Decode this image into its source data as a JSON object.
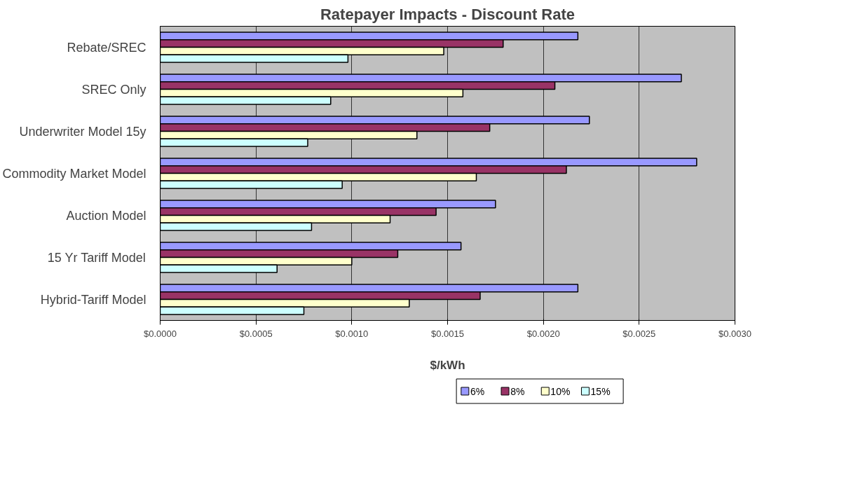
{
  "chart_data": {
    "type": "bar",
    "orientation": "horizontal",
    "title": "Ratepayer Impacts - Discount Rate",
    "xlabel": "$/kWh",
    "categories": [
      "Rebate/SREC",
      "SREC Only",
      "Underwriter Model 15y",
      "Commodity Market Model",
      "Auction Model",
      "15 Yr Tariff Model",
      "Hybrid-Tariff Model"
    ],
    "series": [
      {
        "name": "6%",
        "color": "#9999ff",
        "values": [
          0.00218,
          0.00272,
          0.00224,
          0.0028,
          0.00175,
          0.00157,
          0.00218
        ]
      },
      {
        "name": "8%",
        "color": "#993366",
        "values": [
          0.00179,
          0.00206,
          0.00172,
          0.00212,
          0.00144,
          0.00124,
          0.00167
        ]
      },
      {
        "name": "10%",
        "color": "#ffffcc",
        "values": [
          0.00148,
          0.00158,
          0.00134,
          0.00165,
          0.0012,
          0.001,
          0.0013
        ]
      },
      {
        "name": "15%",
        "color": "#ccffff",
        "values": [
          0.00098,
          0.00089,
          0.00077,
          0.00095,
          0.00079,
          0.00061,
          0.00075
        ]
      }
    ],
    "xlim": [
      0,
      0.003
    ],
    "xticks": [
      {
        "value": 0,
        "label": "$0.0000"
      },
      {
        "value": 0.0005,
        "label": "$0.0005"
      },
      {
        "value": 0.001,
        "label": "$0.0010"
      },
      {
        "value": 0.0015,
        "label": "$0.0015"
      },
      {
        "value": 0.002,
        "label": "$0.0020"
      },
      {
        "value": 0.0025,
        "label": "$0.0025"
      },
      {
        "value": 0.003,
        "label": "$0.0030"
      }
    ],
    "grid": "x",
    "legend": "bottom"
  }
}
